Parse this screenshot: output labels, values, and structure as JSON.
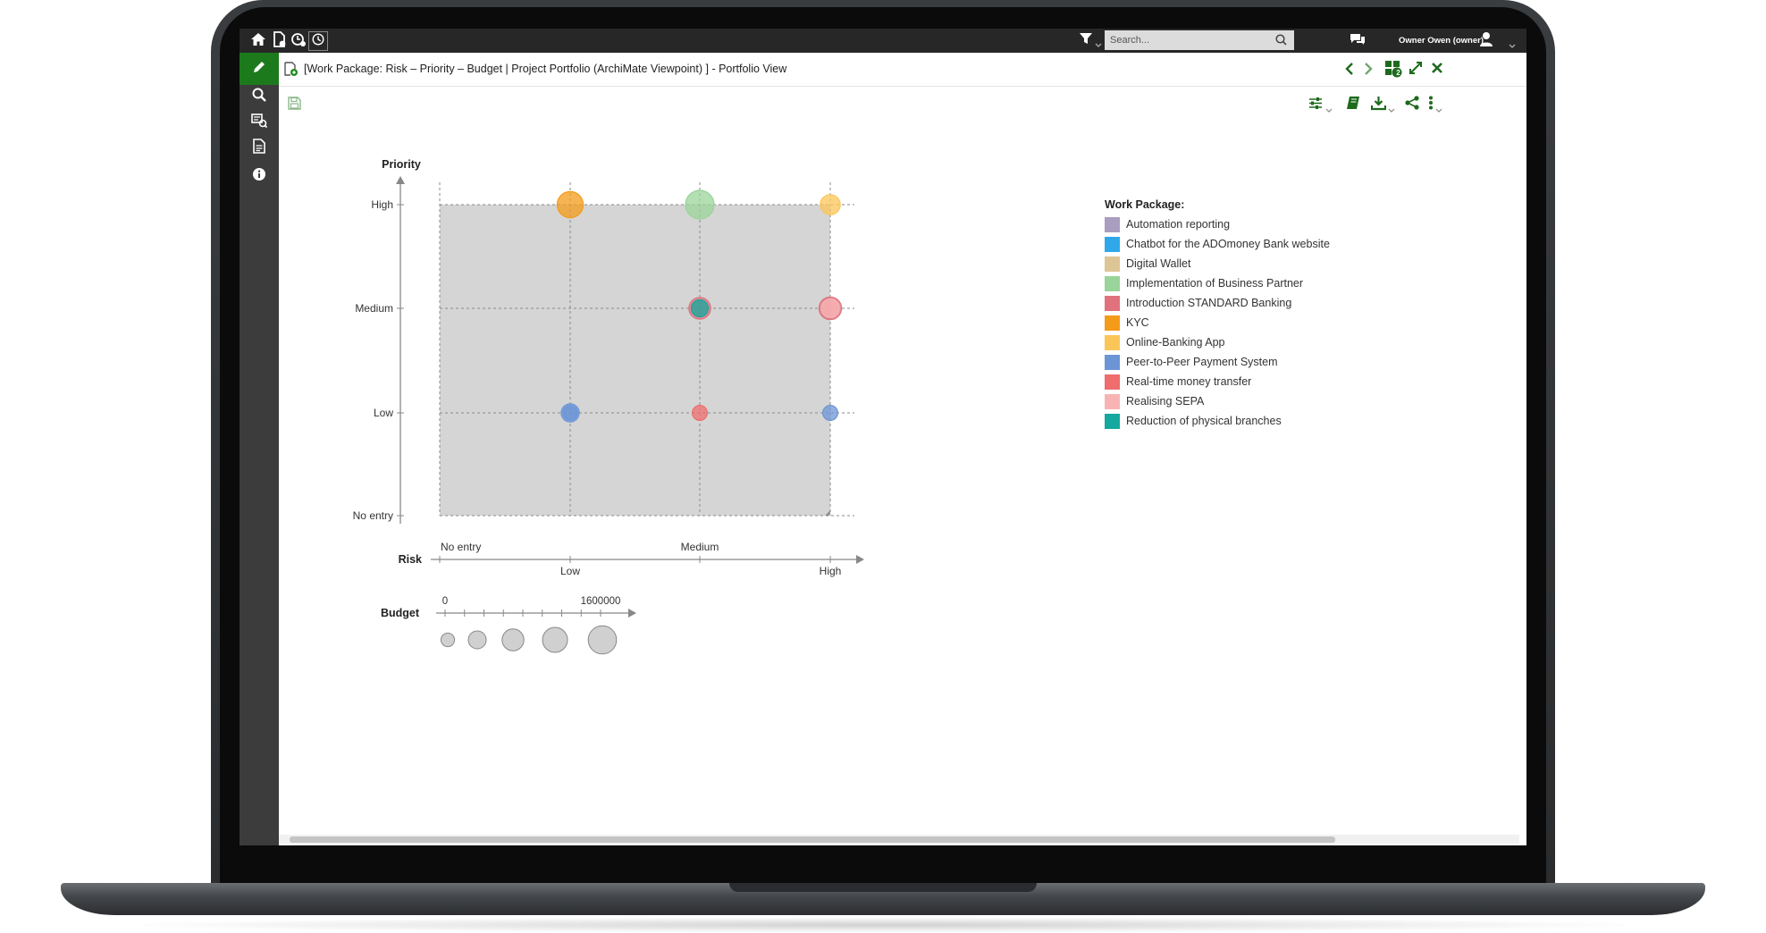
{
  "app": {
    "search_placeholder": "Search...",
    "user_name": "Owner Owen (owner)",
    "window_title": "[Work Package: Risk – Priority – Budget | Project Portfolio (ArchiMate Viewpoint) ] - Portfolio View",
    "navigator_badge": "2"
  },
  "icons": {
    "topbar": [
      "home-icon",
      "new-model-icon",
      "model-history-icon",
      "recent-icon"
    ],
    "topbar_right": [
      "filter-icon",
      "search-icon",
      "chat-icon",
      "user-icon"
    ],
    "sidebar": [
      "pencil-icon",
      "search-icon",
      "model-analysis-icon",
      "document-icon",
      "info-icon"
    ],
    "titlebar": [
      "back-icon",
      "forward-icon",
      "open-models-icon",
      "maximize-icon",
      "close-icon"
    ],
    "toolbar": [
      "save-icon",
      "settings-icon",
      "book-icon",
      "download-icon",
      "share-icon",
      "more-icon"
    ]
  },
  "colors": {
    "accent": "#1c7a1c",
    "topbar": "#272727",
    "sidebar": "#3c3c3c",
    "plot_area": "#d5d5d5"
  },
  "chart_data": {
    "type": "scatter",
    "title": "",
    "ylabel": "Priority",
    "xlabel": "Risk",
    "y_categories": [
      "No entry",
      "Low",
      "Medium",
      "High"
    ],
    "x_categories": [
      "No entry",
      "Low",
      "Medium",
      "High"
    ],
    "grid": true,
    "legend_title": "Work Package:",
    "legend_position": "right",
    "series": [
      {
        "name": "Automation reporting",
        "color": "#a99ebf"
      },
      {
        "name": "Chatbot for the ADOmoney Bank website",
        "color": "#2fa8ea"
      },
      {
        "name": "Digital Wallet",
        "color": "#dec595"
      },
      {
        "name": "Implementation of Business Partner",
        "color": "#99d49a"
      },
      {
        "name": "Introduction STANDARD Banking",
        "color": "#e0727d"
      },
      {
        "name": "KYC",
        "color": "#f49b1a"
      },
      {
        "name": "Online-Banking App",
        "color": "#fbc658"
      },
      {
        "name": "Peer-to-Peer Payment System",
        "color": "#6c95d6"
      },
      {
        "name": "Real-time money transfer",
        "color": "#ef6d6d"
      },
      {
        "name": "Realising SEPA",
        "color": "#f8b4b4"
      },
      {
        "name": "Reduction of physical branches",
        "color": "#14a89e"
      }
    ],
    "points": [
      {
        "risk": "Low",
        "priority": "High",
        "budget": 1600000,
        "color": "#f49b1a"
      },
      {
        "risk": "Medium",
        "priority": "High",
        "budget": 2000000,
        "color": "#99d49a"
      },
      {
        "risk": "High",
        "priority": "High",
        "budget": 800000,
        "color": "#fbc658"
      },
      {
        "risk": "Medium",
        "priority": "Medium",
        "budget": 1000000,
        "color": "#e0727d"
      },
      {
        "risk": "Medium",
        "priority": "Medium",
        "budget": 500000,
        "color": "#14a89e"
      },
      {
        "risk": "High",
        "priority": "Medium",
        "budget": 1100000,
        "color": "#e0727d"
      },
      {
        "risk": "High",
        "priority": "Medium",
        "budget": 600000,
        "color": "#f8b4b4"
      },
      {
        "risk": "Low",
        "priority": "Low",
        "budget": 600000,
        "color": "#6c95d6"
      },
      {
        "risk": "Low",
        "priority": "Low",
        "budget": 300000,
        "color": "#6c95d6"
      },
      {
        "risk": "Medium",
        "priority": "Low",
        "budget": 350000,
        "color": "#ef6d6d"
      },
      {
        "risk": "High",
        "priority": "Low",
        "budget": 350000,
        "color": "#6c95d6"
      }
    ],
    "budget_scale": {
      "label": "Budget",
      "min_label": "0",
      "max_label": "1600000",
      "min": 0,
      "max": 1600000,
      "sample_values": [
        200000,
        500000,
        900000,
        1300000,
        1800000
      ]
    }
  }
}
